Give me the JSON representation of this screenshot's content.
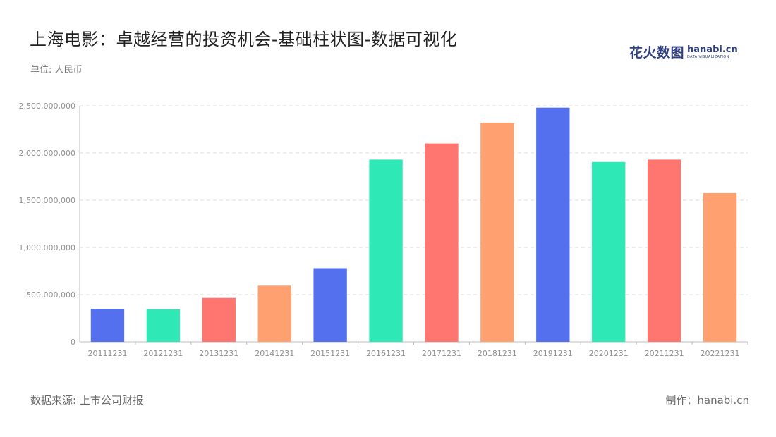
{
  "title": "上海电影：卓越经营的投资机会-基础柱状图-数据可视化",
  "subtitle": "单位: 人民币",
  "logo": {
    "cn": "花火数图",
    "brand": "hanabi.cn",
    "tagline": "DATA VISUALIZATION"
  },
  "footer": {
    "source": "数据来源: 上市公司财报",
    "credit": "制作：hanabi.cn"
  },
  "colors": [
    "#5470ef",
    "#2ee8b6",
    "#ff7670",
    "#ffa070"
  ],
  "chart_data": {
    "type": "bar",
    "categories": [
      "20111231",
      "20121231",
      "20131231",
      "20141231",
      "20151231",
      "20161231",
      "20171231",
      "20181231",
      "20191231",
      "20201231",
      "20211231",
      "20221231"
    ],
    "values": [
      350000000,
      345000000,
      465000000,
      595000000,
      780000000,
      1930000000,
      2100000000,
      2320000000,
      2480000000,
      1905000000,
      1930000000,
      1575000000
    ],
    "title": "上海电影：卓越经营的投资机会-基础柱状图-数据可视化",
    "ylabel": "",
    "xlabel": "",
    "ylim": [
      0,
      2500000000
    ],
    "yticks": [
      "0",
      "500,000,000",
      "1,000,000,000",
      "1,500,000,000",
      "2,000,000,000",
      "2,500,000,000"
    ],
    "grid": true
  }
}
